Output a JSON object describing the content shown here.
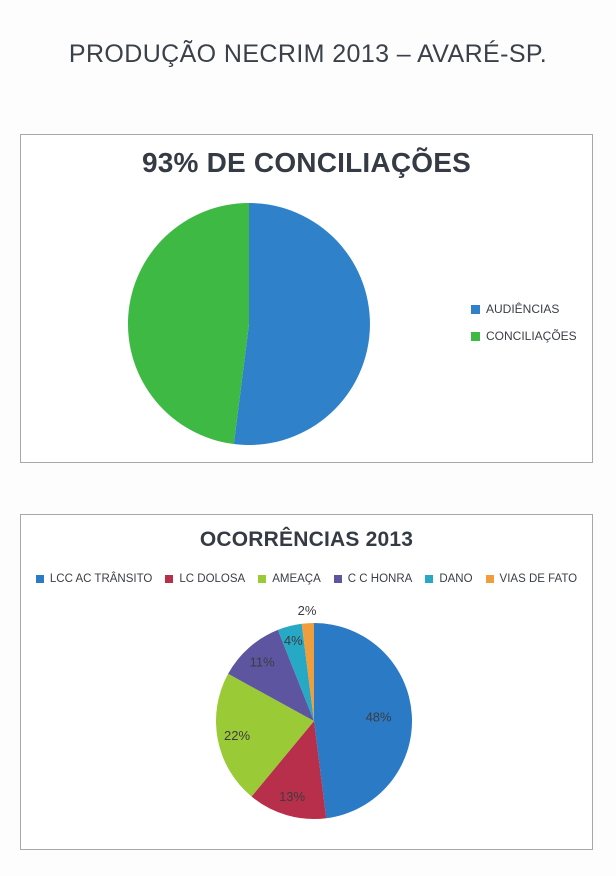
{
  "page_title": "PRODUÇÃO NECRIM 2013 – AVARÉ-SP.",
  "chart_data": [
    {
      "type": "pie",
      "title": "93% DE CONCILIAÇÕES",
      "categories": [
        "AUDIÊNCIAS",
        "CONCILIAÇÕES"
      ],
      "values": [
        52,
        48
      ],
      "data_labels": [],
      "colors": [
        "#2f82c9",
        "#3db944"
      ],
      "start_angle_deg": 0,
      "direction": "clockwise",
      "legend_position": "right",
      "grid": false
    },
    {
      "type": "pie",
      "title": "OCORRÊNCIAS 2013",
      "categories": [
        "LCC AC TRÂNSITO",
        "LC DOLOSA",
        "AMEAÇA",
        "C C HONRA",
        "DANO",
        "VIAS DE FATO"
      ],
      "values": [
        48,
        13,
        22,
        11,
        4,
        2
      ],
      "data_labels": [
        "48%",
        "13%",
        "22%",
        "11%",
        "4%",
        "2%"
      ],
      "label_radius": [
        0.66,
        0.8,
        0.8,
        0.8,
        0.85,
        1.13
      ],
      "colors": [
        "#2b7ac6",
        "#b72f4a",
        "#9aca35",
        "#5d55a0",
        "#27a8c4",
        "#f09d3c"
      ],
      "start_angle_deg": 0,
      "direction": "clockwise",
      "legend_position": "top",
      "grid": false
    }
  ]
}
